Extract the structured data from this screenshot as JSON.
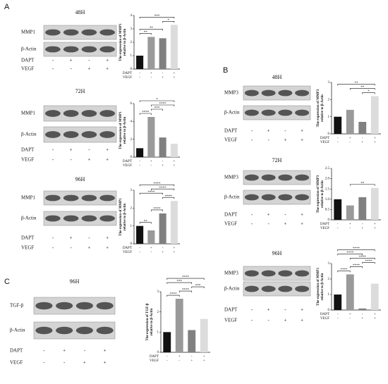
{
  "panels": [
    "A",
    "B",
    "C"
  ],
  "chart_data": [
    {
      "type": "bar",
      "title": "48H",
      "blot_labels": [
        "MMP1",
        "β-Actin"
      ],
      "ylabel": [
        "The expression of MMP1",
        "relative to β-Actin"
      ],
      "treatments": [
        {
          "name": "DAPT",
          "signs": [
            "-",
            "+",
            "-",
            "+"
          ]
        },
        {
          "name": "VEGF",
          "signs": [
            "-",
            "-",
            "+",
            "+"
          ]
        }
      ],
      "values": [
        1,
        2.4,
        2.3,
        3.3
      ],
      "colors": [
        "#111111",
        "#9a9a9a",
        "#808080",
        "#dcdcdc"
      ],
      "ylim": [
        0,
        4
      ],
      "yticks": [
        0,
        1,
        2,
        3,
        4
      ],
      "significance": [
        {
          "bars": [
            0,
            1
          ],
          "label": "**"
        },
        {
          "bars": [
            0,
            2
          ],
          "label": "**"
        },
        {
          "bars": [
            2,
            3
          ],
          "label": "*"
        },
        {
          "bars": [
            0,
            3
          ],
          "label": "***"
        }
      ]
    },
    {
      "type": "bar",
      "title": "72H",
      "blot_labels": [
        "MMP1",
        "β-Actin"
      ],
      "ylabel": [
        "The expression of MMP1",
        "relative to β-Actin"
      ],
      "treatments": [
        {
          "name": "DAPT",
          "signs": [
            "-",
            "+",
            "-",
            "+"
          ]
        },
        {
          "name": "VEGF",
          "signs": [
            "-",
            "-",
            "+",
            "+"
          ]
        }
      ],
      "values": [
        1,
        4.5,
        2.2,
        1.5
      ],
      "colors": [
        "#111111",
        "#9a9a9a",
        "#808080",
        "#dcdcdc"
      ],
      "ylim": [
        0,
        6
      ],
      "yticks": [
        0,
        2,
        4,
        6
      ],
      "significance": [
        {
          "bars": [
            0,
            1
          ],
          "label": "****"
        },
        {
          "bars": [
            1,
            2
          ],
          "label": "***"
        },
        {
          "bars": [
            1,
            3
          ],
          "label": "****"
        },
        {
          "bars": [
            0,
            3
          ],
          "label": "*"
        }
      ]
    },
    {
      "type": "bar",
      "title": "96H",
      "blot_labels": [
        "MMP1",
        "β-Actin"
      ],
      "ylabel": [
        "The expression of MMP1",
        "relative to β-Actin"
      ],
      "treatments": [
        {
          "name": "DAPT",
          "signs": [
            "-",
            "+",
            "-",
            "+"
          ]
        },
        {
          "name": "VEGF",
          "signs": [
            "-",
            "-",
            "+",
            "+"
          ]
        }
      ],
      "values": [
        1,
        0.75,
        1.7,
        2.4
      ],
      "colors": [
        "#111111",
        "#9a9a9a",
        "#808080",
        "#dcdcdc"
      ],
      "ylim": [
        0,
        3
      ],
      "yticks": [
        0,
        1,
        2,
        3
      ],
      "significance": [
        {
          "bars": [
            0,
            1
          ],
          "label": "**"
        },
        {
          "bars": [
            1,
            2
          ],
          "label": "****"
        },
        {
          "bars": [
            2,
            3
          ],
          "label": "****"
        },
        {
          "bars": [
            0,
            2
          ],
          "label": "****"
        },
        {
          "bars": [
            1,
            3
          ],
          "label": "****"
        },
        {
          "bars": [
            0,
            3
          ],
          "label": "****"
        }
      ]
    },
    {
      "type": "bar",
      "title": "48H",
      "blot_labels": [
        "MMP3",
        "β-Actin"
      ],
      "ylabel": [
        "The expression of MMP3",
        "relative to β-Actin"
      ],
      "treatments": [
        {
          "name": "DAPT",
          "signs": [
            "-",
            "+",
            "-",
            "+"
          ]
        },
        {
          "name": "VEGF",
          "signs": [
            "-",
            "-",
            "+",
            "+"
          ]
        }
      ],
      "values": [
        1,
        1.4,
        0.7,
        2.2
      ],
      "colors": [
        "#111111",
        "#9a9a9a",
        "#808080",
        "#dcdcdc"
      ],
      "ylim": [
        0,
        3
      ],
      "yticks": [
        0,
        1,
        2,
        3
      ],
      "significance": [
        {
          "bars": [
            2,
            3
          ],
          "label": "*"
        },
        {
          "bars": [
            1,
            3
          ],
          "label": "**"
        },
        {
          "bars": [
            0,
            3
          ],
          "label": "**"
        }
      ]
    },
    {
      "type": "bar",
      "title": "72H",
      "blot_labels": [
        "MMP3",
        "β-Actin"
      ],
      "ylabel": [
        "The expression of MMP3",
        "relative to β-Actin"
      ],
      "treatments": [
        {
          "name": "DAPT",
          "signs": [
            "-",
            "+",
            "-",
            "+"
          ]
        },
        {
          "name": "VEGF",
          "signs": [
            "-",
            "-",
            "+",
            "+"
          ]
        }
      ],
      "values": [
        1,
        0.7,
        1.1,
        1.55
      ],
      "colors": [
        "#111111",
        "#9a9a9a",
        "#808080",
        "#dcdcdc"
      ],
      "ylim": [
        0,
        2.5
      ],
      "yticks": [
        0,
        0.5,
        {
          "value": 1,
          "label": "1.0"
        },
        1.5,
        {
          "value": 2,
          "label": "2.0"
        },
        2.5
      ],
      "significance": [
        {
          "bars": [
            1,
            3
          ],
          "label": "**"
        }
      ]
    },
    {
      "type": "bar",
      "title": "96H",
      "blot_labels": [
        "MMP3",
        "β-Actin"
      ],
      "ylabel": [
        "The expression of MMP3",
        "relative to β-Actin"
      ],
      "treatments": [
        {
          "name": "DAPT",
          "signs": [
            "-",
            "+",
            "-",
            "+"
          ]
        },
        {
          "name": "VEGF",
          "signs": [
            "-",
            "-",
            "+",
            "+"
          ]
        }
      ],
      "values": [
        1,
        2.3,
        0.1,
        1.7
      ],
      "colors": [
        "#111111",
        "#9a9a9a",
        "#808080",
        "#dcdcdc"
      ],
      "ylim": [
        0,
        3
      ],
      "yticks": [
        0,
        1,
        2,
        3
      ],
      "significance": [
        {
          "bars": [
            0,
            1
          ],
          "label": "****"
        },
        {
          "bars": [
            1,
            2
          ],
          "label": "****"
        },
        {
          "bars": [
            2,
            3
          ],
          "label": "****"
        },
        {
          "bars": [
            1,
            3
          ],
          "label": "****"
        },
        {
          "bars": [
            0,
            2
          ],
          "label": "****"
        },
        {
          "bars": [
            0,
            3
          ],
          "label": "****"
        }
      ]
    },
    {
      "type": "bar",
      "title": "96H",
      "blot_labels": [
        "TGF-β",
        "β-Actin"
      ],
      "ylabel": [
        "The expression of TGF-β",
        "relative to β-Actin"
      ],
      "treatments": [
        {
          "name": "DAPT",
          "signs": [
            "-",
            "+",
            "-",
            "+"
          ]
        },
        {
          "name": "VEGF",
          "signs": [
            "-",
            "-",
            "+",
            "+"
          ]
        }
      ],
      "values": [
        1,
        2.65,
        1.1,
        1.65
      ],
      "colors": [
        "#111111",
        "#9a9a9a",
        "#808080",
        "#dcdcdc"
      ],
      "ylim": [
        0,
        3
      ],
      "yticks": [
        0,
        1,
        2,
        3
      ],
      "significance": [
        {
          "bars": [
            0,
            1
          ],
          "label": "****"
        },
        {
          "bars": [
            1,
            2
          ],
          "label": "****"
        },
        {
          "bars": [
            2,
            3
          ],
          "label": "***"
        },
        {
          "bars": [
            0,
            2
          ],
          "label": "***"
        },
        {
          "bars": [
            0,
            3
          ],
          "label": "****"
        }
      ]
    }
  ]
}
